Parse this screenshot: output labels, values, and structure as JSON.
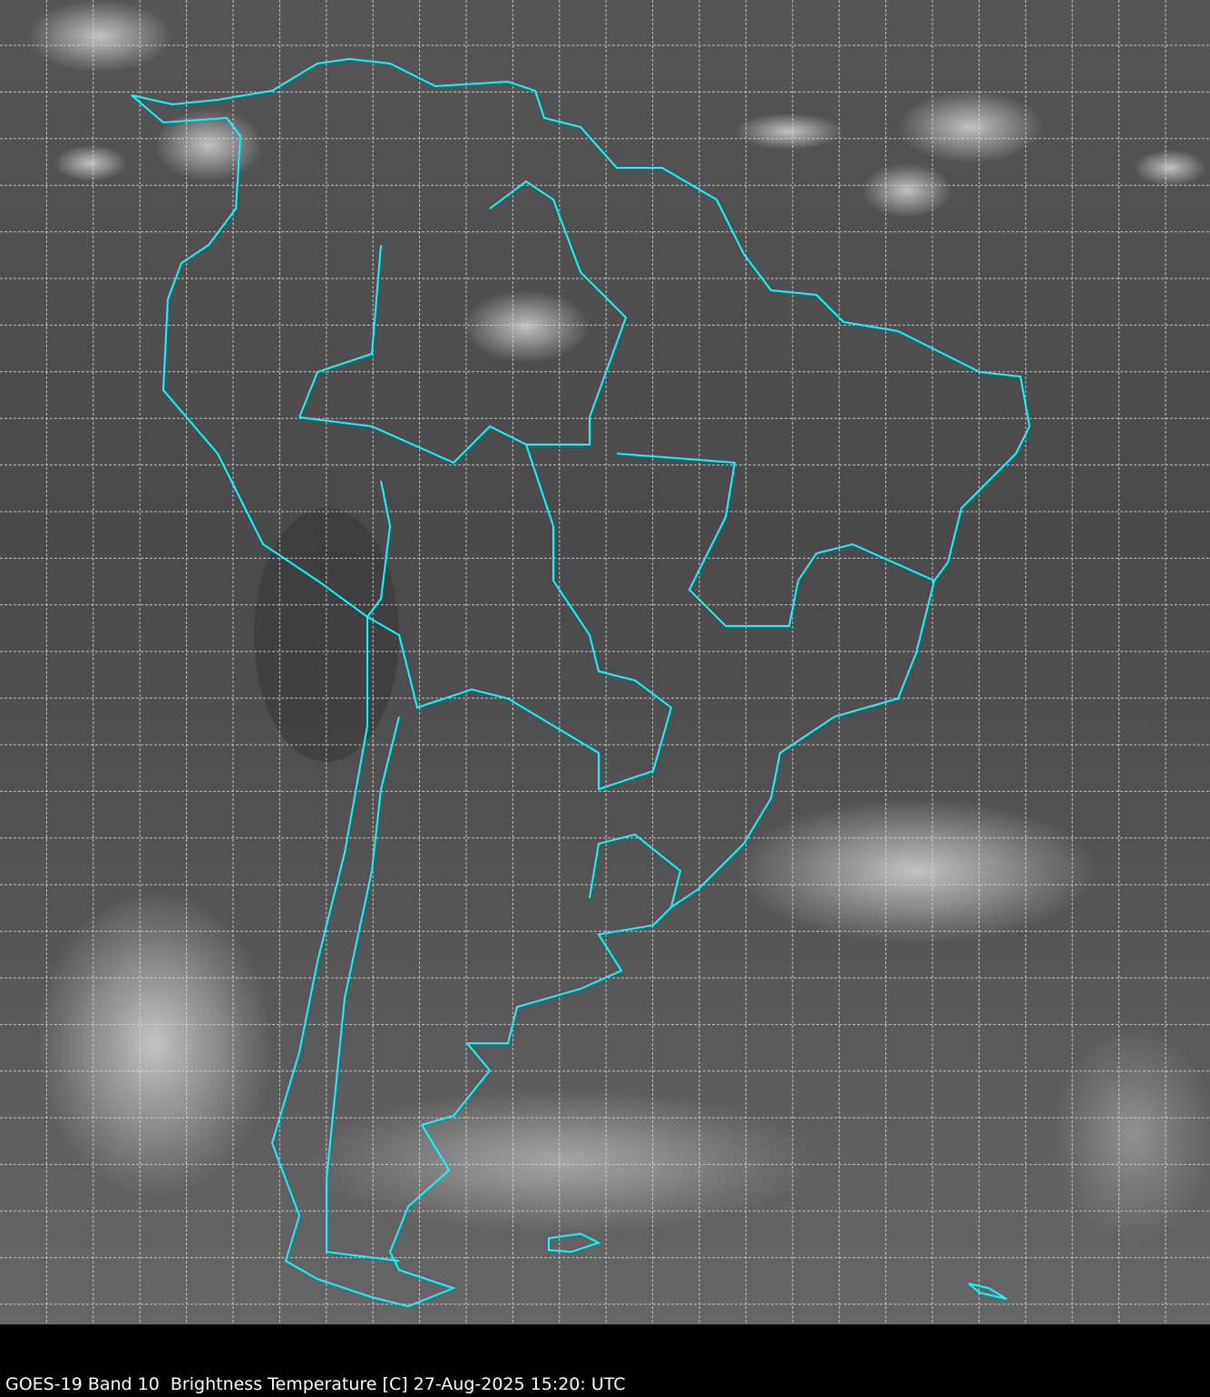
{
  "caption": "GOES-19 Band 10  Brightness Temperature [C] 27-Aug-2025 15:20: UTC",
  "colors": {
    "background": "#000000",
    "coastline": "#00ffff",
    "grid": "#dcdcdc",
    "land_base": "#4a4a4a"
  },
  "map": {
    "region": "South America",
    "grid": true,
    "colormap": "grayscale"
  }
}
